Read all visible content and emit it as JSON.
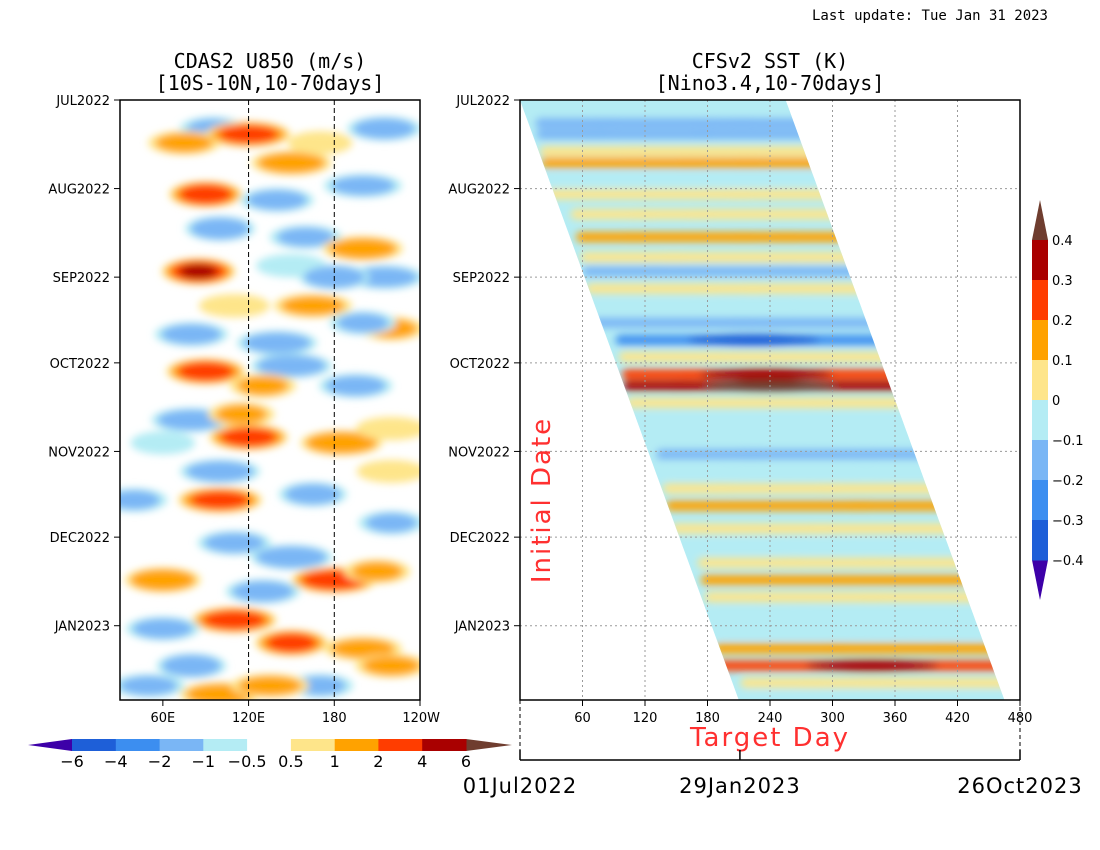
{
  "last_update": "Last update: Tue Jan 31 2023",
  "chart_data": [
    {
      "type": "heatmap",
      "title": "CDAS2 U850 (m/s)",
      "subtitle": "[10S-10N,10-70days]",
      "x_ticks": [
        "60E",
        "120E",
        "180",
        "120W"
      ],
      "x_tick_values_deg": [
        60,
        120,
        180,
        240
      ],
      "xlim_deg": [
        30,
        240
      ],
      "dashed_meridians_deg": [
        120,
        180
      ],
      "y_ticks": [
        "JUL2022",
        "AUG2022",
        "SEP2022",
        "OCT2022",
        "NOV2022",
        "DEC2022",
        "JAN2023"
      ],
      "y_tick_days": [
        0,
        31,
        62,
        92,
        123,
        153,
        184
      ],
      "ylim_days": [
        0,
        210
      ],
      "colorbar": {
        "levels": [
          "-6",
          "-4",
          "-2",
          "-1",
          "-0.5",
          "0.5",
          "1",
          "2",
          "4",
          "6"
        ],
        "colors": [
          "#3d00a8",
          "#1e5fd8",
          "#3c8ef0",
          "#7ab6f5",
          "#b4ecf4",
          "#ffffff",
          "#fee58a",
          "#ffa200",
          "#ff3d00",
          "#a90000",
          "#6f3d2f"
        ]
      },
      "anomalies": [
        {
          "lon": 95,
          "day": 10,
          "v": -1.5
        },
        {
          "lon": 75,
          "day": 15,
          "v": 1.5
        },
        {
          "lon": 120,
          "day": 12,
          "v": 3.5
        },
        {
          "lon": 170,
          "day": 15,
          "v": 1.2
        },
        {
          "lon": 215,
          "day": 10,
          "v": -2
        },
        {
          "lon": 150,
          "day": 22,
          "v": 2
        },
        {
          "lon": 90,
          "day": 33,
          "v": 4.5
        },
        {
          "lon": 140,
          "day": 35,
          "v": -1.8
        },
        {
          "lon": 200,
          "day": 30,
          "v": -1.5
        },
        {
          "lon": 100,
          "day": 45,
          "v": -2.5
        },
        {
          "lon": 160,
          "day": 48,
          "v": -1.5
        },
        {
          "lon": 200,
          "day": 52,
          "v": 2
        },
        {
          "lon": 85,
          "day": 60,
          "v": 5
        },
        {
          "lon": 150,
          "day": 58,
          "v": -1.2
        },
        {
          "lon": 215,
          "day": 62,
          "v": -1.8
        },
        {
          "lon": 180,
          "day": 62,
          "v": -2.8
        },
        {
          "lon": 110,
          "day": 72,
          "v": 1.2
        },
        {
          "lon": 165,
          "day": 72,
          "v": 1.5
        },
        {
          "lon": 220,
          "day": 80,
          "v": 1.5
        },
        {
          "lon": 80,
          "day": 82,
          "v": -1.8
        },
        {
          "lon": 140,
          "day": 85,
          "v": -2
        },
        {
          "lon": 200,
          "day": 78,
          "v": -1.5
        },
        {
          "lon": 90,
          "day": 95,
          "v": 4
        },
        {
          "lon": 150,
          "day": 93,
          "v": -2.2
        },
        {
          "lon": 130,
          "day": 100,
          "v": 1.5
        },
        {
          "lon": 195,
          "day": 100,
          "v": -1.8
        },
        {
          "lon": 80,
          "day": 112,
          "v": -2
        },
        {
          "lon": 115,
          "day": 110,
          "v": 1.5
        },
        {
          "lon": 120,
          "day": 118,
          "v": 4
        },
        {
          "lon": 185,
          "day": 120,
          "v": 2.5
        },
        {
          "lon": 60,
          "day": 120,
          "v": -1.2
        },
        {
          "lon": 220,
          "day": 115,
          "v": 1.2
        },
        {
          "lon": 100,
          "day": 130,
          "v": -2
        },
        {
          "lon": 165,
          "day": 138,
          "v": -2
        },
        {
          "lon": 220,
          "day": 130,
          "v": 1
        },
        {
          "lon": 100,
          "day": 140,
          "v": 3.5
        },
        {
          "lon": 40,
          "day": 140,
          "v": -1.5
        },
        {
          "lon": 110,
          "day": 155,
          "v": -1.8
        },
        {
          "lon": 150,
          "day": 160,
          "v": -2.5
        },
        {
          "lon": 220,
          "day": 148,
          "v": -1.5
        },
        {
          "lon": 60,
          "day": 168,
          "v": 2.5
        },
        {
          "lon": 180,
          "day": 168,
          "v": 4.5
        },
        {
          "lon": 210,
          "day": 165,
          "v": 1.5
        },
        {
          "lon": 130,
          "day": 172,
          "v": -2
        },
        {
          "lon": 110,
          "day": 182,
          "v": 4
        },
        {
          "lon": 150,
          "day": 190,
          "v": 4
        },
        {
          "lon": 60,
          "day": 185,
          "v": -1.8
        },
        {
          "lon": 200,
          "day": 192,
          "v": 1.5
        },
        {
          "lon": 80,
          "day": 198,
          "v": -2.5
        },
        {
          "lon": 220,
          "day": 198,
          "v": 1.5
        },
        {
          "lon": 100,
          "day": 208,
          "v": 2
        },
        {
          "lon": 170,
          "day": 205,
          "v": -1.5
        },
        {
          "lon": 50,
          "day": 205,
          "v": -1.5
        },
        {
          "lon": 135,
          "day": 205,
          "v": 1.5
        }
      ]
    },
    {
      "type": "heatmap",
      "title": "CFSv2 SST (K)",
      "subtitle": "[Nino3.4,10-70days]",
      "xlabel": "Target Day",
      "ylabel": "Initial Date",
      "x_ticks": [
        "60",
        "120",
        "180",
        "240",
        "300",
        "360",
        "420",
        "480"
      ],
      "x_tick_values": [
        60,
        120,
        180,
        240,
        300,
        360,
        420,
        480
      ],
      "xlim": [
        0,
        480
      ],
      "y_ticks": [
        "JUL2022",
        "AUG2022",
        "SEP2022",
        "OCT2022",
        "NOV2022",
        "DEC2022",
        "JAN2023"
      ],
      "y_tick_days": [
        0,
        31,
        62,
        92,
        123,
        153,
        184
      ],
      "ylim_days": [
        0,
        210
      ],
      "forecast_lead_days": [
        0,
        255
      ],
      "date_axis": {
        "labels": [
          "01Jul2022",
          "29Jan2023",
          "26Oct2023"
        ],
        "day_values": [
          0,
          212,
          482
        ]
      },
      "colorbar": {
        "levels": [
          "-0.4",
          "-0.3",
          "-0.2",
          "-0.1",
          "0",
          "0.1",
          "0.2",
          "0.3",
          "0.4"
        ],
        "colors": [
          "#3d00a8",
          "#1e5fd8",
          "#3c8ef0",
          "#7ab6f5",
          "#b4ecf4",
          "#fee58a",
          "#ffa200",
          "#ff3d00",
          "#a90000",
          "#6f3d2f"
        ]
      },
      "bands": [
        {
          "day": 4,
          "v": -0.05
        },
        {
          "day": 8,
          "v": -0.15
        },
        {
          "day": 12,
          "v": -0.12
        },
        {
          "day": 18,
          "v": 0.05
        },
        {
          "day": 22,
          "v": 0.12
        },
        {
          "day": 28,
          "v": -0.05
        },
        {
          "day": 33,
          "v": 0.02
        },
        {
          "day": 40,
          "v": 0.08
        },
        {
          "day": 48,
          "v": 0.15
        },
        {
          "day": 55,
          "v": 0.02
        },
        {
          "day": 60,
          "v": -0.12
        },
        {
          "day": 66,
          "v": 0.05
        },
        {
          "day": 72,
          "v": -0.08
        },
        {
          "day": 78,
          "v": -0.15
        },
        {
          "day": 84,
          "v": -0.25
        },
        {
          "day": 90,
          "v": 0.05
        },
        {
          "day": 96,
          "v": 0.2
        },
        {
          "day": 100,
          "v": 0.35
        },
        {
          "day": 106,
          "v": 0.08
        },
        {
          "day": 112,
          "v": -0.08
        },
        {
          "day": 118,
          "v": -0.05
        },
        {
          "day": 124,
          "v": -0.1
        },
        {
          "day": 130,
          "v": -0.05
        },
        {
          "day": 136,
          "v": 0.05
        },
        {
          "day": 142,
          "v": 0.12
        },
        {
          "day": 150,
          "v": 0.05
        },
        {
          "day": 156,
          "v": -0.05
        },
        {
          "day": 162,
          "v": 0.08
        },
        {
          "day": 168,
          "v": 0.12
        },
        {
          "day": 174,
          "v": 0.05
        },
        {
          "day": 180,
          "v": -0.05
        },
        {
          "day": 186,
          "v": -0.08
        },
        {
          "day": 192,
          "v": 0.1
        },
        {
          "day": 198,
          "v": 0.2
        },
        {
          "day": 204,
          "v": 0.08
        },
        {
          "day": 209,
          "v": -0.05
        }
      ]
    }
  ]
}
